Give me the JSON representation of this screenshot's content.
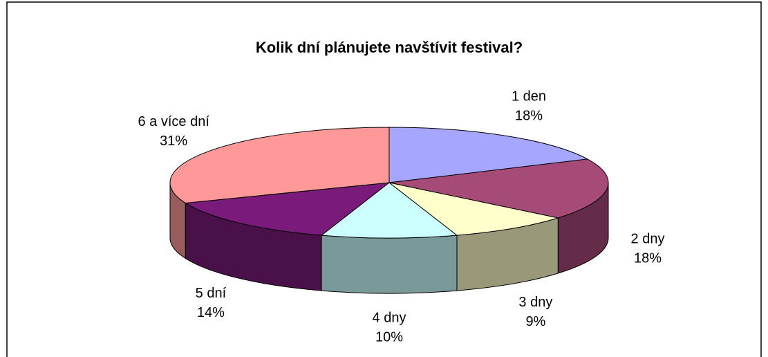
{
  "chart_data": {
    "type": "pie3d",
    "title": "Kolik dní plánujete navštívit festival?",
    "categories": [
      "1 den",
      "2 dny",
      "3 dny",
      "4 dny",
      "5 dní",
      "6 a více dní"
    ],
    "values": [
      18,
      18,
      9,
      10,
      14,
      31
    ],
    "value_labels": [
      "18%",
      "18%",
      "9%",
      "10%",
      "14%",
      "31%"
    ],
    "colors": [
      "#a6a6ff",
      "#a64a78",
      "#ffffcc",
      "#ccffff",
      "#7a1a7a",
      "#ff9999"
    ]
  }
}
